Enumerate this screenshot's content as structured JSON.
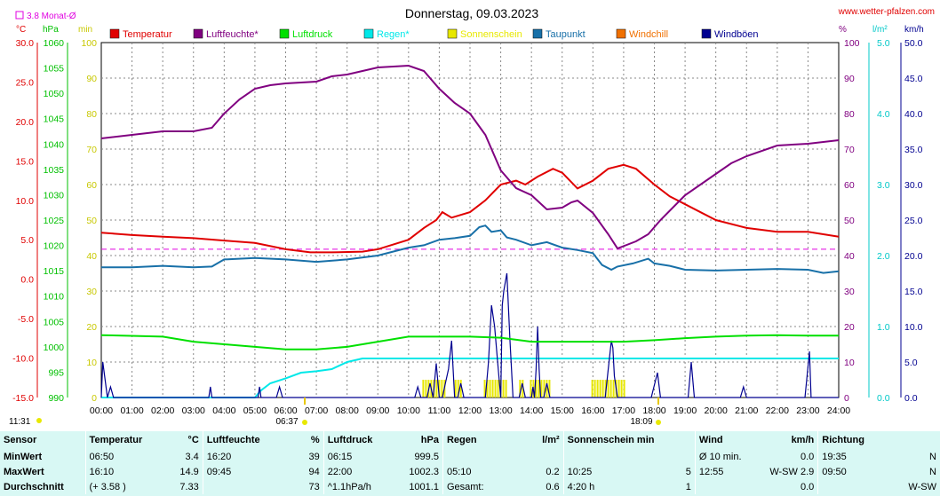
{
  "header": {
    "title": "Donnerstag, 09.03.2023",
    "site": "www.wetter-pfalzen.com",
    "monat_label": "3.8 Monat-Ø",
    "unit_c": "°C",
    "unit_hpa": "hPa",
    "unit_min": "min",
    "unit_pct": "%",
    "unit_lm2": "l/m²",
    "unit_kmh": "km/h",
    "sunrise": "06:37",
    "sunset": "18:09",
    "time_left": "11:31"
  },
  "legend": [
    {
      "label": "Temperatur",
      "color": "#e00000"
    },
    {
      "label": "Luftfeuchte*",
      "color": "#800080"
    },
    {
      "label": "Luftdruck",
      "color": "#00e000"
    },
    {
      "label": "Regen*",
      "color": "#00e8e8"
    },
    {
      "label": "Sonnenschein",
      "color": "#e8e800"
    },
    {
      "label": "Taupunkt",
      "color": "#1870a8"
    },
    {
      "label": "Windchill",
      "color": "#f07000"
    },
    {
      "label": "Windböen",
      "color": "#000090"
    }
  ],
  "axes": {
    "temp_ticks": [
      "30.0",
      "25.0",
      "20.0",
      "15.0",
      "10.0",
      "5.0",
      "0.0",
      "-5.0",
      "-10.0",
      "-15.0"
    ],
    "hpa_ticks": [
      "1060",
      "1055",
      "1050",
      "1045",
      "1040",
      "1035",
      "1030",
      "1025",
      "1020",
      "1015",
      "1010",
      "1005",
      "1000",
      "995",
      "990"
    ],
    "min_ticks": [
      "100",
      "90",
      "80",
      "70",
      "60",
      "50",
      "40",
      "30",
      "20",
      "10",
      "0"
    ],
    "pct_ticks": [
      "100",
      "90",
      "80",
      "70",
      "60",
      "50",
      "40",
      "30",
      "20",
      "10",
      "0"
    ],
    "rain_ticks": [
      "5.0",
      "4.0",
      "3.0",
      "2.0",
      "1.0",
      "0.0"
    ],
    "wind_ticks": [
      "50.0",
      "45.0",
      "40.0",
      "35.0",
      "30.0",
      "25.0",
      "20.0",
      "15.0",
      "10.0",
      "5.0",
      "0.0"
    ],
    "x_ticks": [
      "00:00",
      "01:00",
      "02:00",
      "03:00",
      "04:00",
      "05:00",
      "06:00",
      "07:00",
      "08:00",
      "09:00",
      "10:00",
      "11:00",
      "12:00",
      "13:00",
      "14:00",
      "15:00",
      "16:00",
      "17:00",
      "18:00",
      "19:00",
      "20:00",
      "21:00",
      "22:00",
      "23:00",
      "24:00"
    ]
  },
  "chart_data": {
    "type": "line",
    "title": "Donnerstag, 09.03.2023",
    "x_range": [
      0,
      24
    ],
    "grid": true,
    "legend_position": "top",
    "temp_range": [
      -15,
      30
    ],
    "hpa_range": [
      990,
      1060
    ],
    "pct_range": [
      0,
      100
    ],
    "rain_range": [
      0,
      5
    ],
    "wind_range": [
      0,
      50
    ],
    "monthly_mean_temp": 3.8,
    "series": [
      {
        "name": "Temperatur",
        "unit": "°C",
        "points": [
          [
            0,
            5.9
          ],
          [
            1,
            5.6
          ],
          [
            2,
            5.4
          ],
          [
            3,
            5.2
          ],
          [
            4,
            4.9
          ],
          [
            5,
            4.6
          ],
          [
            6,
            3.8
          ],
          [
            6.8,
            3.4
          ],
          [
            7.5,
            3.4
          ],
          [
            8.5,
            3.5
          ],
          [
            9,
            3.8
          ],
          [
            10,
            5
          ],
          [
            10.5,
            6.5
          ],
          [
            10.9,
            7.5
          ],
          [
            11.1,
            8.5
          ],
          [
            11.4,
            7.8
          ],
          [
            12,
            8.5
          ],
          [
            12.5,
            10
          ],
          [
            13,
            12
          ],
          [
            13.5,
            12.5
          ],
          [
            13.8,
            12
          ],
          [
            14.2,
            13
          ],
          [
            14.7,
            14
          ],
          [
            15,
            13.5
          ],
          [
            15.5,
            11.5
          ],
          [
            16,
            12.5
          ],
          [
            16.5,
            14
          ],
          [
            17,
            14.5
          ],
          [
            17.4,
            14
          ],
          [
            18,
            12
          ],
          [
            18.5,
            10.5
          ],
          [
            19,
            9.5
          ],
          [
            20,
            7.5
          ],
          [
            21,
            6.5
          ],
          [
            22,
            6
          ],
          [
            23,
            6
          ],
          [
            24,
            5.4
          ]
        ]
      },
      {
        "name": "Luftfeuchte*",
        "unit": "%",
        "points": [
          [
            0,
            73
          ],
          [
            1,
            74
          ],
          [
            2,
            75
          ],
          [
            3,
            75
          ],
          [
            3.6,
            76
          ],
          [
            4,
            80
          ],
          [
            4.5,
            84
          ],
          [
            5,
            87
          ],
          [
            5.5,
            88
          ],
          [
            6,
            88.5
          ],
          [
            7,
            89
          ],
          [
            7.5,
            90.5
          ],
          [
            8,
            91
          ],
          [
            8.5,
            92
          ],
          [
            9,
            93
          ],
          [
            10,
            93.5
          ],
          [
            10.5,
            92
          ],
          [
            11,
            87
          ],
          [
            11.5,
            83
          ],
          [
            12,
            80
          ],
          [
            12.5,
            74
          ],
          [
            13,
            64
          ],
          [
            13.5,
            59
          ],
          [
            14,
            57
          ],
          [
            14.5,
            53
          ],
          [
            15,
            53.5
          ],
          [
            15.3,
            55
          ],
          [
            15.5,
            55.5
          ],
          [
            16,
            52
          ],
          [
            16.5,
            46
          ],
          [
            16.8,
            42
          ],
          [
            17.4,
            44
          ],
          [
            17.8,
            46
          ],
          [
            18.2,
            50
          ],
          [
            19,
            57
          ],
          [
            20,
            63
          ],
          [
            20.5,
            66
          ],
          [
            21,
            68
          ],
          [
            22,
            71
          ],
          [
            23,
            71.5
          ],
          [
            24,
            72.5
          ]
        ]
      },
      {
        "name": "Luftdruck",
        "unit": "hPa",
        "points": [
          [
            0,
            1002.3
          ],
          [
            2,
            1002
          ],
          [
            3,
            1001
          ],
          [
            4,
            1000.5
          ],
          [
            5,
            1000
          ],
          [
            6,
            999.5
          ],
          [
            7,
            999.5
          ],
          [
            8,
            1000
          ],
          [
            9,
            1001
          ],
          [
            10,
            1002
          ],
          [
            11,
            1002
          ],
          [
            12,
            1002
          ],
          [
            13,
            1001.8
          ],
          [
            14,
            1001
          ],
          [
            15,
            1001
          ],
          [
            16,
            1001
          ],
          [
            17,
            1001
          ],
          [
            18,
            1001.3
          ],
          [
            19,
            1001.7
          ],
          [
            20,
            1002
          ],
          [
            21,
            1002.2
          ],
          [
            22,
            1002.3
          ],
          [
            23,
            1002.2
          ],
          [
            24,
            1002.2
          ]
        ]
      },
      {
        "name": "Regen*",
        "unit": "l/m²",
        "points": [
          [
            0,
            0
          ],
          [
            5,
            0
          ],
          [
            5.2,
            0.1
          ],
          [
            5.5,
            0.2
          ],
          [
            6,
            0.27
          ],
          [
            6.5,
            0.35
          ],
          [
            7,
            0.37
          ],
          [
            7.5,
            0.4
          ],
          [
            8,
            0.5
          ],
          [
            8.5,
            0.55
          ],
          [
            24,
            0.55
          ]
        ]
      },
      {
        "name": "Taupunkt",
        "unit": "°C",
        "points": [
          [
            0,
            1.5
          ],
          [
            1,
            1.5
          ],
          [
            2,
            1.7
          ],
          [
            3,
            1.5
          ],
          [
            3.6,
            1.6
          ],
          [
            4,
            2.5
          ],
          [
            5,
            2.7
          ],
          [
            6,
            2.5
          ],
          [
            7,
            2.2
          ],
          [
            8,
            2.5
          ],
          [
            9,
            3
          ],
          [
            10,
            4
          ],
          [
            10.5,
            4.3
          ],
          [
            11,
            5
          ],
          [
            11.5,
            5.2
          ],
          [
            12,
            5.5
          ],
          [
            12.3,
            6.6
          ],
          [
            12.5,
            6.8
          ],
          [
            12.7,
            6
          ],
          [
            13,
            6.2
          ],
          [
            13.2,
            5.3
          ],
          [
            13.5,
            5
          ],
          [
            14,
            4.3
          ],
          [
            14.5,
            4.7
          ],
          [
            15,
            4
          ],
          [
            15.5,
            3.7
          ],
          [
            16,
            3.3
          ],
          [
            16.3,
            1.8
          ],
          [
            16.6,
            1.2
          ],
          [
            16.8,
            1.6
          ],
          [
            17.3,
            2
          ],
          [
            17.8,
            2.6
          ],
          [
            18,
            2
          ],
          [
            18.5,
            1.7
          ],
          [
            19,
            1.2
          ],
          [
            20,
            1.1
          ],
          [
            21,
            1.2
          ],
          [
            22,
            1.3
          ],
          [
            23,
            1.2
          ],
          [
            23.5,
            0.8
          ],
          [
            24,
            1
          ]
        ]
      },
      {
        "name": "Windchill",
        "unit": "°C",
        "points": []
      },
      {
        "name": "Windböen",
        "unit": "km/h",
        "points": [
          [
            0,
            0
          ],
          [
            0.05,
            5
          ],
          [
            0.2,
            0
          ],
          [
            0.3,
            1.5
          ],
          [
            0.4,
            0
          ],
          [
            3.5,
            0
          ],
          [
            3.55,
            1.5
          ],
          [
            3.6,
            0
          ],
          [
            5.1,
            0
          ],
          [
            5.15,
            1.5
          ],
          [
            5.2,
            0
          ],
          [
            5.7,
            0
          ],
          [
            5.8,
            1.5
          ],
          [
            5.9,
            0
          ],
          [
            10.2,
            0
          ],
          [
            10.3,
            1.5
          ],
          [
            10.4,
            0
          ],
          [
            10.6,
            0
          ],
          [
            10.7,
            2
          ],
          [
            10.8,
            0
          ],
          [
            10.9,
            4.8
          ],
          [
            11,
            0
          ],
          [
            11.1,
            0
          ],
          [
            11.2,
            2
          ],
          [
            11.3,
            4
          ],
          [
            11.4,
            8
          ],
          [
            11.5,
            0
          ],
          [
            11.6,
            0
          ],
          [
            11.7,
            2
          ],
          [
            11.8,
            0
          ],
          [
            12.5,
            0
          ],
          [
            12.6,
            5
          ],
          [
            12.7,
            13
          ],
          [
            12.8,
            10
          ],
          [
            12.9,
            5
          ],
          [
            13,
            0
          ],
          [
            13.05,
            13
          ],
          [
            13.1,
            15
          ],
          [
            13.2,
            17.5
          ],
          [
            13.3,
            8
          ],
          [
            13.4,
            0
          ],
          [
            13.6,
            0
          ],
          [
            13.7,
            2
          ],
          [
            13.8,
            0
          ],
          [
            14,
            0
          ],
          [
            14.05,
            1.5
          ],
          [
            14.1,
            0
          ],
          [
            14.15,
            4
          ],
          [
            14.2,
            10
          ],
          [
            14.25,
            4
          ],
          [
            14.3,
            0
          ],
          [
            14.4,
            0
          ],
          [
            14.5,
            2
          ],
          [
            14.6,
            0
          ],
          [
            16.4,
            0
          ],
          [
            16.5,
            4
          ],
          [
            16.6,
            8
          ],
          [
            16.65,
            7
          ],
          [
            16.7,
            3
          ],
          [
            16.8,
            0
          ],
          [
            17.9,
            0
          ],
          [
            18.1,
            3.5
          ],
          [
            18.2,
            0
          ],
          [
            19.1,
            0
          ],
          [
            19.2,
            5
          ],
          [
            19.3,
            0
          ],
          [
            20.8,
            0
          ],
          [
            20.9,
            1.5
          ],
          [
            21,
            0
          ],
          [
            22.9,
            0
          ],
          [
            23.05,
            6.5
          ],
          [
            23.1,
            0
          ],
          [
            24,
            0
          ]
        ]
      }
    ],
    "sunshine_intervals": [
      [
        10.45,
        11.2
      ],
      [
        11.5,
        11.75
      ],
      [
        12.45,
        13.2
      ],
      [
        13.6,
        13.75
      ],
      [
        13.95,
        14.6
      ],
      [
        15.95,
        17.05
      ]
    ]
  },
  "stats": {
    "headers": [
      {
        "a": "Sensor",
        "b": "",
        "c": ""
      },
      {
        "a": "Temperatur",
        "b": "°C"
      },
      {
        "a": "Luftfeuchte",
        "b": "%"
      },
      {
        "a": "Luftdruck",
        "b": "hPa"
      },
      {
        "a": "Regen",
        "b": "l/m²"
      },
      {
        "a": "Sonnenschein min",
        "b": ""
      },
      {
        "a": "Wind",
        "b": "km/h"
      },
      {
        "a": "Richtung",
        "b": ""
      }
    ],
    "rows": [
      {
        "label": "MinWert",
        "cells": [
          [
            "06:50",
            "3.4"
          ],
          [
            "16:20",
            "39"
          ],
          [
            "06:15",
            "999.5"
          ],
          [
            "",
            ""
          ],
          [
            "",
            ""
          ],
          [
            "Ø 10 min.",
            "0.0"
          ],
          [
            "19:35",
            "N"
          ]
        ]
      },
      {
        "label": "MaxWert",
        "cells": [
          [
            "16:10",
            "14.9"
          ],
          [
            "09:45",
            "94"
          ],
          [
            "22:00",
            "1002.3"
          ],
          [
            "05:10",
            "0.2"
          ],
          [
            "10:25",
            "5"
          ],
          [
            "12:55",
            "W-SW 2.9"
          ],
          [
            "09:50",
            "N"
          ]
        ]
      },
      {
        "label": "Durchschnitt",
        "cells": [
          [
            "(+ 3.58 )",
            "7.33"
          ],
          [
            "",
            "73"
          ],
          [
            "^1.1hPa/h",
            "1001.1"
          ],
          [
            "Gesamt:",
            "0.6"
          ],
          [
            "4:20 h",
            "1"
          ],
          [
            "",
            "0.0"
          ],
          [
            "",
            "W-SW"
          ]
        ]
      }
    ]
  }
}
